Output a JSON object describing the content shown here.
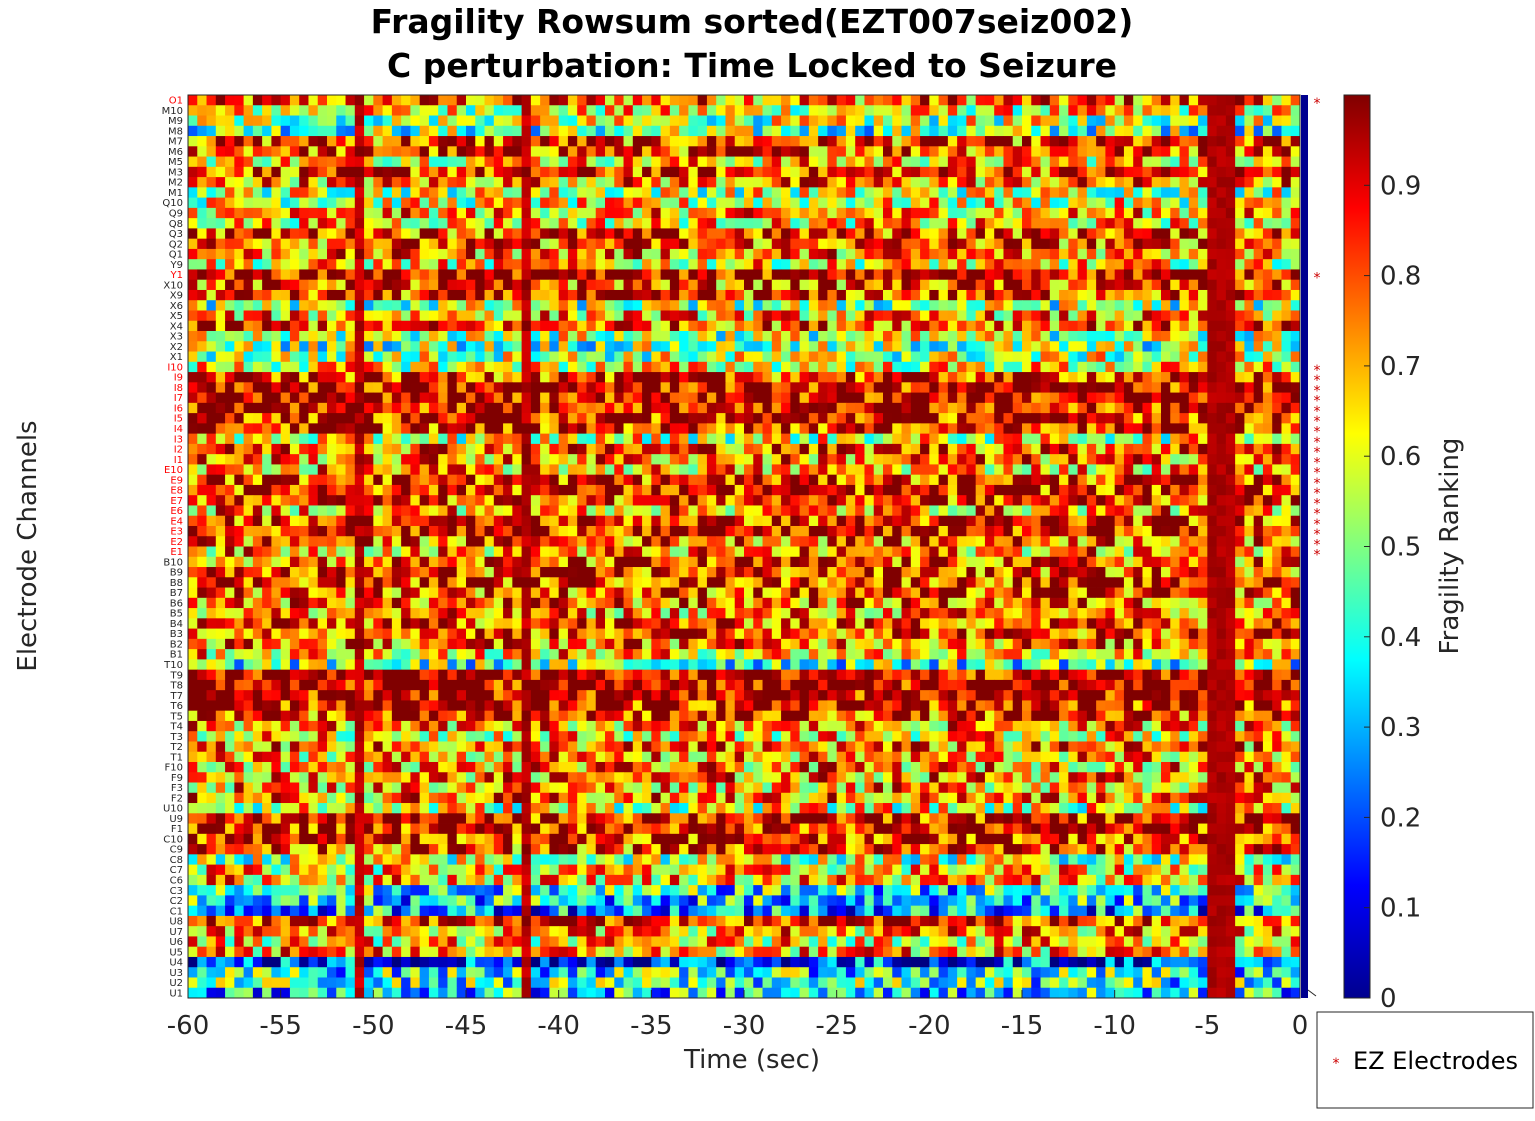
{
  "chart_data": {
    "type": "heatmap",
    "title": [
      "Fragility Rowsum sorted(EZT007seiz002)",
      "C perturbation:  Time Locked to Seizure"
    ],
    "xlabel": "Time (sec)",
    "ylabel": "Electrode Channels",
    "colorbar_label": "Fragility Ranking",
    "colormap": "jet",
    "xlim": [
      -60,
      0
    ],
    "x_ticks": [
      "-60",
      "-55",
      "-50",
      "-45",
      "-40",
      "-35",
      "-30",
      "-25",
      "-20",
      "-15",
      "-10",
      "-5",
      "0"
    ],
    "clim": [
      0,
      1
    ],
    "colorbar_ticks": [
      "0",
      "0.1",
      "0.2",
      "0.3",
      "0.4",
      "0.5",
      "0.6",
      "0.7",
      "0.8",
      "0.9"
    ],
    "channels": [
      "O1",
      "M10",
      "M9",
      "M8",
      "M7",
      "M6",
      "M5",
      "M3",
      "M2",
      "M1",
      "Q10",
      "Q9",
      "Q8",
      "Q3",
      "Q2",
      "Q1",
      "Y9",
      "Y1",
      "X10",
      "X9",
      "X6",
      "X5",
      "X4",
      "X3",
      "X2",
      "X1",
      "I10",
      "I9",
      "I8",
      "I7",
      "I6",
      "I5",
      "I4",
      "I3",
      "I2",
      "I1",
      "E10",
      "E9",
      "E8",
      "E7",
      "E6",
      "E4",
      "E3",
      "E2",
      "E1",
      "B10",
      "B9",
      "B8",
      "B7",
      "B6",
      "B5",
      "B4",
      "B3",
      "B2",
      "B1",
      "T10",
      "T9",
      "T8",
      "T7",
      "T6",
      "T5",
      "T4",
      "T3",
      "T2",
      "T1",
      "F10",
      "F9",
      "F3",
      "F2",
      "U10",
      "U9",
      "F1",
      "C10",
      "C9",
      "C8",
      "C7",
      "C6",
      "C3",
      "C2",
      "C1",
      "U8",
      "U7",
      "U6",
      "U5",
      "U4",
      "U3",
      "U2",
      "U1"
    ],
    "ez_channels": [
      "O1",
      "Y1",
      "I10",
      "I9",
      "I8",
      "I7",
      "I6",
      "I5",
      "I4",
      "I3",
      "I2",
      "I1",
      "E10",
      "E9",
      "E8",
      "E7",
      "E6",
      "E4",
      "E3",
      "E2",
      "E1"
    ],
    "row_mean_fragility": [
      0.78,
      0.62,
      0.55,
      0.48,
      0.82,
      0.83,
      0.68,
      0.85,
      0.74,
      0.58,
      0.6,
      0.7,
      0.66,
      0.84,
      0.8,
      0.75,
      0.64,
      0.95,
      0.8,
      0.82,
      0.52,
      0.7,
      0.82,
      0.55,
      0.5,
      0.55,
      0.62,
      0.86,
      0.93,
      0.94,
      0.93,
      0.9,
      0.88,
      0.6,
      0.82,
      0.75,
      0.7,
      0.86,
      0.88,
      0.85,
      0.72,
      0.86,
      0.9,
      0.8,
      0.72,
      0.8,
      0.82,
      0.86,
      0.82,
      0.78,
      0.72,
      0.82,
      0.84,
      0.78,
      0.68,
      0.45,
      0.95,
      0.96,
      0.95,
      0.9,
      0.84,
      0.72,
      0.66,
      0.75,
      0.7,
      0.72,
      0.74,
      0.72,
      0.74,
      0.6,
      0.9,
      0.9,
      0.88,
      0.82,
      0.55,
      0.66,
      0.7,
      0.38,
      0.35,
      0.3,
      0.88,
      0.72,
      0.66,
      0.7,
      0.18,
      0.4,
      0.42,
      0.35
    ],
    "notable_time_columns": [
      {
        "time": -51,
        "description": "elevated fragility across channels"
      },
      {
        "time": -42,
        "description": "elevated fragility across channels"
      },
      {
        "time": -4.5,
        "description": "high fragility band across all channels"
      }
    ],
    "legend": {
      "marker": "*",
      "label": "EZ Electrodes",
      "placement": "bottom-right"
    },
    "grid": false
  }
}
